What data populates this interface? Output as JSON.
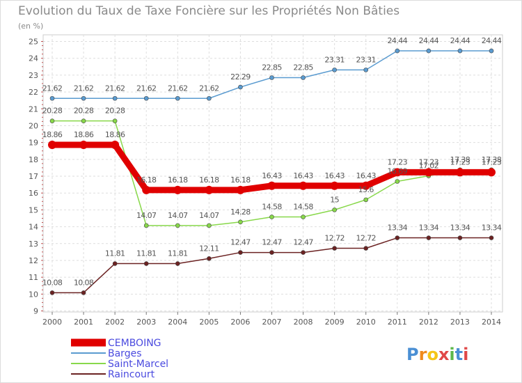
{
  "chart_data": {
    "type": "line",
    "title": "Evolution du Taux de Taxe Foncière sur les Propriétés Non Bâties",
    "subtitle": "(en %)",
    "xlabel": "",
    "ylabel": "",
    "x": [
      2000,
      2001,
      2002,
      2003,
      2004,
      2005,
      2006,
      2007,
      2008,
      2009,
      2010,
      2011,
      2012,
      2013,
      2014
    ],
    "ylim": [
      9,
      25
    ],
    "yticks": [
      9,
      10,
      11,
      12,
      13,
      14,
      15,
      16,
      17,
      18,
      19,
      20,
      21,
      22,
      23,
      24,
      25
    ],
    "grid": true,
    "legend_position": "bottom-left",
    "series": [
      {
        "name": "CEMBOING",
        "color": "#e00000",
        "labels": [
          "18.86",
          "18.86",
          "18.86",
          "16.18",
          "16.18",
          "16.18",
          "16.18",
          "16.43",
          "16.43",
          "16.43",
          "16.43",
          "17.23",
          "17.23",
          "17.23",
          "17.23"
        ],
        "values": [
          18.86,
          18.86,
          18.86,
          16.18,
          16.18,
          16.18,
          16.18,
          16.43,
          16.43,
          16.43,
          16.43,
          17.23,
          17.23,
          17.23,
          17.23
        ]
      },
      {
        "name": "Barges",
        "color": "#5a9bd0",
        "labels": [
          "21.62",
          "21.62",
          "21.62",
          "21.62",
          "21.62",
          "21.62",
          "22.29",
          "22.85",
          "22.85",
          "23.31",
          "23.31",
          "24.44",
          "24.44",
          "24.44",
          "24.44"
        ],
        "values": [
          21.62,
          21.62,
          21.62,
          21.62,
          21.62,
          21.62,
          22.29,
          22.85,
          22.85,
          23.31,
          23.31,
          24.44,
          24.44,
          24.44,
          24.44
        ]
      },
      {
        "name": "Saint-Marcel",
        "color": "#88d84a",
        "labels": [
          "20.28",
          "20.28",
          "20.28",
          "14.07",
          "14.07",
          "14.07",
          "14.28",
          "14.58",
          "14.58",
          "15",
          "15.6",
          "16.69",
          "17.02",
          "17.38",
          "17.38"
        ],
        "values": [
          20.28,
          20.28,
          20.28,
          14.07,
          14.07,
          14.07,
          14.28,
          14.58,
          14.58,
          15.0,
          15.6,
          16.69,
          17.02,
          17.38,
          17.38
        ]
      },
      {
        "name": "Raincourt",
        "color": "#6b2222",
        "labels": [
          "10.08",
          "10.08",
          "11.81",
          "11.81",
          "11.81",
          "12.11",
          "12.47",
          "12.47",
          "12.47",
          "12.72",
          "12.72",
          "13.34",
          "13.34",
          "13.34",
          "13.34"
        ],
        "values": [
          10.08,
          10.08,
          11.81,
          11.81,
          11.81,
          12.11,
          12.47,
          12.47,
          12.47,
          12.72,
          12.72,
          13.34,
          13.34,
          13.34,
          13.34
        ]
      }
    ]
  },
  "logo": {
    "text": "Proxiti",
    "letters": [
      "P",
      "r",
      "o",
      "x",
      "i",
      "t",
      "i"
    ],
    "colors": [
      "#4a8fd4",
      "#f08a1c",
      "#f5c518",
      "#e04848",
      "#5db84a",
      "#4a8fd4",
      "#e04848"
    ]
  }
}
